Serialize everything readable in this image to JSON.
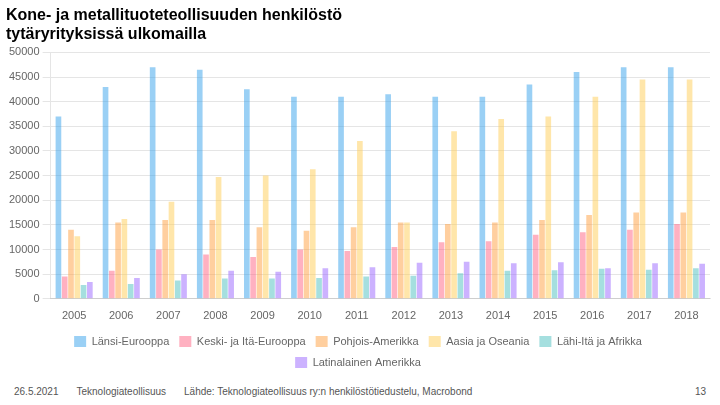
{
  "chart_data": {
    "type": "bar",
    "title": "Kone- ja metallituoteteollisuuden henkilöstö\ntytäryrityksissä ulkomailla",
    "categories": [
      "2005",
      "2006",
      "2007",
      "2008",
      "2009",
      "2010",
      "2011",
      "2012",
      "2013",
      "2014",
      "2015",
      "2016",
      "2017",
      "2018"
    ],
    "series": [
      {
        "name": "Länsi-Eurooppa",
        "values": [
          37000,
          43000,
          47000,
          46500,
          42500,
          41000,
          41000,
          41500,
          41000,
          41000,
          43500,
          46000,
          47000,
          47000
        ]
      },
      {
        "name": "Keski- ja Itä-Eurooppa",
        "values": [
          4500,
          5700,
          10000,
          9000,
          8500,
          10000,
          9700,
          10500,
          11500,
          11700,
          13000,
          13500,
          14000,
          15200
        ]
      },
      {
        "name": "Pohjois-Amerikka",
        "values": [
          14000,
          15500,
          16000,
          16000,
          14500,
          13800,
          14500,
          15500,
          15200,
          15500,
          16000,
          17000,
          17500,
          17500
        ]
      },
      {
        "name": "Aasia ja Oseania",
        "values": [
          12700,
          16200,
          19700,
          24700,
          25000,
          26300,
          32000,
          15500,
          34000,
          36500,
          37000,
          41000,
          44500,
          44500
        ]
      },
      {
        "name": "Lähi-Itä ja Afrikka",
        "values": [
          2800,
          3000,
          3700,
          4100,
          4100,
          4200,
          4500,
          4700,
          5200,
          5700,
          5800,
          6100,
          5900,
          6200
        ]
      },
      {
        "name": "Latinalainen Amerikka",
        "values": [
          3400,
          4200,
          5000,
          5700,
          5500,
          6200,
          6400,
          7300,
          7500,
          7200,
          7400,
          6200,
          7200,
          7100
        ]
      }
    ],
    "ylim": [
      0,
      50000
    ],
    "yticks": [
      0,
      5000,
      10000,
      15000,
      20000,
      25000,
      30000,
      35000,
      40000,
      45000,
      50000
    ],
    "grid": true,
    "legend": "bottom",
    "annotations": [
      "26.5.2021",
      "Teknologiateollisuus",
      "Lähde: Teknologiateollisuus ry:n henkilöstötiedustelu, Macrobond",
      "13"
    ]
  }
}
